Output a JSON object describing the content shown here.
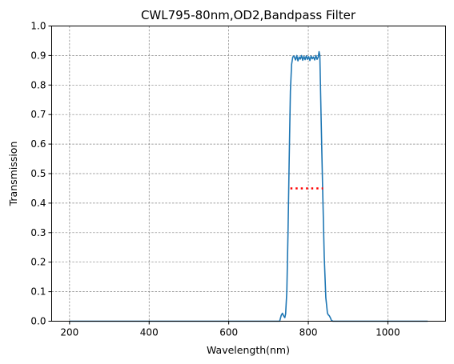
{
  "chart_data": {
    "type": "line",
    "title": "CWL795-80nm,OD2,Bandpass Filter",
    "xlabel": "Wavelength(nm)",
    "ylabel": "Transmission",
    "xlim": [
      155,
      1145
    ],
    "ylim": [
      0,
      1.0
    ],
    "xticks": [
      200,
      400,
      600,
      800,
      1000
    ],
    "yticks": [
      0.0,
      0.1,
      0.2,
      0.3,
      0.4,
      0.5,
      0.6,
      0.7,
      0.8,
      0.9,
      1.0
    ],
    "grid": true,
    "series": [
      {
        "color": "#1f77b4",
        "style": "solid",
        "x": [
          200,
          400,
          600,
          700,
          728,
          732,
          735,
          738,
          741,
          743,
          746,
          749,
          752,
          755,
          758,
          761,
          764,
          768,
          771,
          774,
          777,
          780,
          783,
          786,
          789,
          792,
          795,
          798,
          801,
          804,
          807,
          810,
          813,
          816,
          819,
          822,
          825,
          827,
          829,
          832,
          836,
          840,
          844,
          848,
          850,
          853,
          856,
          858,
          862,
          870,
          900,
          1000,
          1100
        ],
        "y": [
          0.0,
          0.0,
          0.0,
          0.0,
          0.0,
          0.02,
          0.027,
          0.018,
          0.012,
          0.025,
          0.1,
          0.3,
          0.55,
          0.78,
          0.87,
          0.895,
          0.898,
          0.885,
          0.9,
          0.882,
          0.895,
          0.888,
          0.9,
          0.884,
          0.897,
          0.886,
          0.899,
          0.887,
          0.896,
          0.883,
          0.898,
          0.889,
          0.895,
          0.885,
          0.9,
          0.887,
          0.895,
          0.913,
          0.9,
          0.7,
          0.45,
          0.22,
          0.08,
          0.028,
          0.022,
          0.018,
          0.01,
          0.003,
          0.0,
          0.0,
          0.0,
          0.0,
          0.0
        ]
      },
      {
        "color": "#ff0000",
        "style": "dotted",
        "x": [
          755,
          837
        ],
        "y": [
          0.45,
          0.45
        ]
      }
    ]
  }
}
